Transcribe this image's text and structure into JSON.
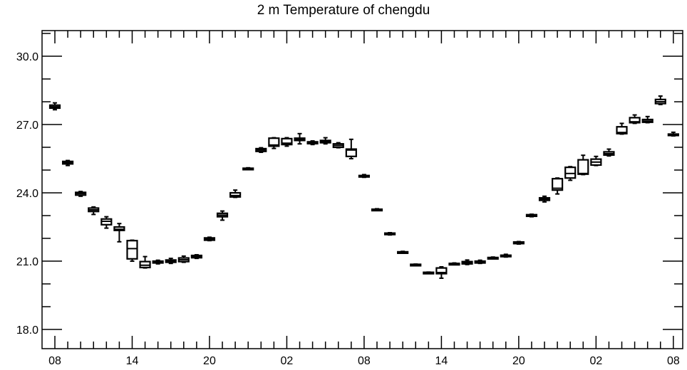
{
  "chart_data": {
    "type": "box",
    "title": "2 m Temperature of chengdu",
    "xlabel": "",
    "ylabel": "",
    "ylim": [
      17.5,
      31.1
    ],
    "y_ticks": [
      {
        "value": 18.0,
        "label": "18.0"
      },
      {
        "value": 21.0,
        "label": "21.0"
      },
      {
        "value": 24.0,
        "label": "24.0"
      },
      {
        "value": 27.0,
        "label": "27.0"
      },
      {
        "value": 30.0,
        "label": "30.0"
      }
    ],
    "y_minor_step": 1.0,
    "x_count": 49,
    "x_ticks": [
      {
        "index": 0,
        "label": "08"
      },
      {
        "index": 6,
        "label": "14"
      },
      {
        "index": 12,
        "label": "20"
      },
      {
        "index": 18,
        "label": "02"
      },
      {
        "index": 24,
        "label": "08"
      },
      {
        "index": 30,
        "label": "14"
      },
      {
        "index": 36,
        "label": "20"
      },
      {
        "index": 42,
        "label": "02"
      },
      {
        "index": 48,
        "label": "08"
      }
    ],
    "boxes": [
      {
        "i": 0,
        "min": 27.65,
        "q1": 27.72,
        "med": 27.78,
        "q3": 27.85,
        "max": 27.95
      },
      {
        "i": 1,
        "min": 25.2,
        "q1": 25.27,
        "med": 25.32,
        "q3": 25.38,
        "max": 25.42
      },
      {
        "i": 2,
        "min": 23.85,
        "q1": 23.9,
        "med": 23.97,
        "q3": 24.02,
        "max": 24.06
      },
      {
        "i": 3,
        "min": 23.05,
        "q1": 23.18,
        "med": 23.25,
        "q3": 23.33,
        "max": 23.38
      },
      {
        "i": 4,
        "min": 22.45,
        "q1": 22.6,
        "med": 22.75,
        "q3": 22.85,
        "max": 22.95
      },
      {
        "i": 5,
        "min": 21.85,
        "q1": 22.35,
        "med": 22.4,
        "q3": 22.5,
        "max": 22.65
      },
      {
        "i": 6,
        "min": 21.0,
        "q1": 21.1,
        "med": 21.55,
        "q3": 21.9,
        "max": 21.92
      },
      {
        "i": 7,
        "min": 20.7,
        "q1": 20.72,
        "med": 20.82,
        "q3": 20.98,
        "max": 21.2
      },
      {
        "i": 8,
        "min": 20.88,
        "q1": 20.92,
        "med": 20.96,
        "q3": 21.0,
        "max": 21.04
      },
      {
        "i": 9,
        "min": 20.9,
        "q1": 20.95,
        "med": 21.0,
        "q3": 21.05,
        "max": 21.12
      },
      {
        "i": 10,
        "min": 20.95,
        "q1": 20.98,
        "med": 21.06,
        "q3": 21.14,
        "max": 21.22
      },
      {
        "i": 11,
        "min": 21.12,
        "q1": 21.15,
        "med": 21.2,
        "q3": 21.25,
        "max": 21.28
      },
      {
        "i": 12,
        "min": 21.9,
        "q1": 21.92,
        "med": 21.97,
        "q3": 22.02,
        "max": 22.05
      },
      {
        "i": 13,
        "min": 22.8,
        "q1": 22.95,
        "med": 23.02,
        "q3": 23.1,
        "max": 23.2
      },
      {
        "i": 14,
        "min": 23.8,
        "q1": 23.82,
        "med": 23.88,
        "q3": 24.0,
        "max": 24.12
      },
      {
        "i": 15,
        "min": 25.02,
        "q1": 25.04,
        "med": 25.06,
        "q3": 25.08,
        "max": 25.1
      },
      {
        "i": 16,
        "min": 25.78,
        "q1": 25.82,
        "med": 25.88,
        "q3": 25.94,
        "max": 25.98
      },
      {
        "i": 17,
        "min": 25.95,
        "q1": 26.05,
        "med": 26.1,
        "q3": 26.4,
        "max": 26.42
      },
      {
        "i": 18,
        "min": 26.05,
        "q1": 26.12,
        "med": 26.18,
        "q3": 26.38,
        "max": 26.42
      },
      {
        "i": 19,
        "min": 26.15,
        "q1": 26.3,
        "med": 26.35,
        "q3": 26.4,
        "max": 26.6
      },
      {
        "i": 20,
        "min": 26.12,
        "q1": 26.16,
        "med": 26.2,
        "q3": 26.24,
        "max": 26.28
      },
      {
        "i": 21,
        "min": 26.15,
        "q1": 26.2,
        "med": 26.25,
        "q3": 26.3,
        "max": 26.42
      },
      {
        "i": 22,
        "min": 25.98,
        "q1": 26.0,
        "med": 26.08,
        "q3": 26.15,
        "max": 26.2
      },
      {
        "i": 23,
        "min": 25.5,
        "q1": 25.6,
        "med": 25.88,
        "q3": 25.92,
        "max": 26.35
      },
      {
        "i": 24,
        "min": 24.68,
        "q1": 24.7,
        "med": 24.72,
        "q3": 24.76,
        "max": 24.8
      },
      {
        "i": 25,
        "min": 23.22,
        "q1": 23.24,
        "med": 23.26,
        "q3": 23.28,
        "max": 23.3
      },
      {
        "i": 26,
        "min": 22.15,
        "q1": 22.17,
        "med": 22.2,
        "q3": 22.23,
        "max": 22.25
      },
      {
        "i": 27,
        "min": 21.35,
        "q1": 21.37,
        "med": 21.39,
        "q3": 21.41,
        "max": 21.43
      },
      {
        "i": 28,
        "min": 20.82,
        "q1": 20.83,
        "med": 20.84,
        "q3": 20.86,
        "max": 20.87
      },
      {
        "i": 29,
        "min": 20.48,
        "q1": 20.49,
        "med": 20.5,
        "q3": 20.51,
        "max": 20.52
      },
      {
        "i": 30,
        "min": 20.25,
        "q1": 20.45,
        "med": 20.5,
        "q3": 20.7,
        "max": 20.75
      },
      {
        "i": 31,
        "min": 20.85,
        "q1": 20.86,
        "med": 20.88,
        "q3": 20.9,
        "max": 20.92
      },
      {
        "i": 32,
        "min": 20.85,
        "q1": 20.88,
        "med": 20.93,
        "q3": 20.98,
        "max": 21.05
      },
      {
        "i": 33,
        "min": 20.9,
        "q1": 20.92,
        "med": 20.96,
        "q3": 21.0,
        "max": 21.04
      },
      {
        "i": 34,
        "min": 21.1,
        "q1": 21.12,
        "med": 21.14,
        "q3": 21.16,
        "max": 21.18
      },
      {
        "i": 35,
        "min": 21.18,
        "q1": 21.2,
        "med": 21.22,
        "q3": 21.26,
        "max": 21.3
      },
      {
        "i": 36,
        "min": 21.75,
        "q1": 21.77,
        "med": 21.8,
        "q3": 21.84,
        "max": 21.86
      },
      {
        "i": 37,
        "min": 22.95,
        "q1": 22.97,
        "med": 23.0,
        "q3": 23.04,
        "max": 23.06
      },
      {
        "i": 38,
        "min": 23.6,
        "q1": 23.67,
        "med": 23.73,
        "q3": 23.78,
        "max": 23.85
      },
      {
        "i": 39,
        "min": 23.95,
        "q1": 24.12,
        "med": 24.2,
        "q3": 24.62,
        "max": 24.65
      },
      {
        "i": 40,
        "min": 24.55,
        "q1": 24.65,
        "med": 24.85,
        "q3": 25.12,
        "max": 25.15
      },
      {
        "i": 41,
        "min": 24.8,
        "q1": 24.82,
        "med": 24.85,
        "q3": 25.45,
        "max": 25.65
      },
      {
        "i": 42,
        "min": 25.2,
        "q1": 25.22,
        "med": 25.35,
        "q3": 25.48,
        "max": 25.6
      },
      {
        "i": 43,
        "min": 25.62,
        "q1": 25.66,
        "med": 25.72,
        "q3": 25.8,
        "max": 25.92
      },
      {
        "i": 44,
        "min": 26.58,
        "q1": 26.6,
        "med": 26.65,
        "q3": 26.9,
        "max": 27.05
      },
      {
        "i": 45,
        "min": 27.05,
        "q1": 27.08,
        "med": 27.12,
        "q3": 27.3,
        "max": 27.42
      },
      {
        "i": 46,
        "min": 27.08,
        "q1": 27.1,
        "med": 27.15,
        "q3": 27.22,
        "max": 27.35
      },
      {
        "i": 47,
        "min": 27.88,
        "q1": 27.92,
        "med": 28.0,
        "q3": 28.1,
        "max": 28.25
      },
      {
        "i": 48,
        "min": 26.5,
        "q1": 26.52,
        "med": 26.55,
        "q3": 26.58,
        "max": 26.66
      }
    ]
  }
}
